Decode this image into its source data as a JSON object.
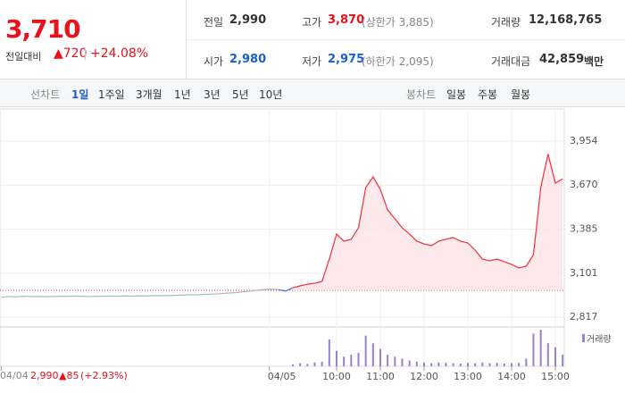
{
  "quote": {
    "price": "3,710",
    "change_label": "전일대비",
    "change": "▲720",
    "rate": "+24.08%"
  },
  "stats": [
    {
      "label": "전일",
      "value": "2,990"
    },
    {
      "label": "고가",
      "value": "3,870",
      "note": "(상한가 3,885)"
    },
    {
      "label": "거래량",
      "value": "12,168,765"
    },
    {
      "label": "시가",
      "value": "2,980"
    },
    {
      "label": "저가",
      "value": "2,975",
      "note": "(하한가 2,095)"
    },
    {
      "label": "거래대금",
      "value": "42,859",
      "unit": "백만"
    }
  ],
  "line_tabs": {
    "label": "선차트",
    "items": [
      "1일",
      "1주일",
      "3개월",
      "1년",
      "3년",
      "5년",
      "10년"
    ]
  },
  "candle_tabs": {
    "label": "봉차트",
    "items": [
      "일봉",
      "주봉",
      "월봉"
    ]
  },
  "prev_day": {
    "close": "2,990",
    "change": "▲85",
    "rate": "(+2.93%)"
  },
  "chart_data": {
    "type": "line",
    "ylim": [
      2817,
      3954
    ],
    "yticks": [
      {
        "value": 3954,
        "label": "3,954"
      },
      {
        "value": 3670,
        "label": "3,670"
      },
      {
        "value": 3385,
        "label": "3,385"
      },
      {
        "value": 3101,
        "label": "3,101"
      },
      {
        "value": 2817,
        "label": "2,817"
      }
    ],
    "xlim": [
      0,
      77
    ],
    "xticks": [
      {
        "value": 0,
        "label": "04/04"
      },
      {
        "value": 38,
        "label": "04/05"
      },
      {
        "value": 46,
        "label": "10:00"
      },
      {
        "value": 52,
        "label": "11:00"
      },
      {
        "value": 58,
        "label": "12:00"
      },
      {
        "value": 64,
        "label": "13:00"
      },
      {
        "value": 70,
        "label": "14:00"
      },
      {
        "value": 76,
        "label": "15:00"
      }
    ],
    "reference_line": 2990,
    "series": [
      {
        "color": "#b4b4b4",
        "values": [
          2945,
          2950,
          2948,
          2952,
          2950,
          2951,
          2949,
          2950,
          2952,
          2951,
          2953,
          2952,
          2950,
          2951,
          2952,
          2953,
          2952,
          2954,
          2953,
          2955,
          2954,
          2956,
          2955,
          2957,
          2958,
          2960,
          2962,
          2961,
          2964,
          2966,
          2968,
          2972,
          2975,
          2980,
          2984,
          2990,
          2995,
          2998,
          2995,
          null,
          null,
          null,
          null,
          null,
          null,
          null,
          null,
          null,
          null,
          null,
          null,
          null,
          null,
          null,
          null,
          null,
          null,
          null,
          null,
          null,
          null,
          null,
          null,
          null,
          null,
          null,
          null,
          null,
          null,
          null,
          null,
          null,
          null,
          null,
          null,
          null,
          null,
          null
        ]
      },
      {
        "color": "#2f6fd0",
        "values": [
          null,
          null,
          null,
          null,
          null,
          null,
          null,
          null,
          null,
          null,
          null,
          null,
          null,
          null,
          null,
          null,
          null,
          null,
          null,
          null,
          null,
          null,
          null,
          null,
          null,
          null,
          null,
          null,
          null,
          null,
          null,
          null,
          null,
          null,
          null,
          null,
          null,
          null,
          2995,
          2985,
          3007,
          null,
          null,
          null,
          null,
          null,
          null,
          null,
          null,
          null,
          null,
          null,
          null,
          null,
          null,
          null,
          null,
          null,
          null,
          null,
          null,
          null,
          null,
          null,
          null,
          null,
          null,
          null,
          null,
          null,
          null,
          null,
          null,
          null,
          null,
          null,
          null,
          null
        ]
      },
      {
        "color": "#f0313b",
        "fill": "#fde4e6",
        "values": [
          null,
          null,
          null,
          null,
          null,
          null,
          null,
          null,
          null,
          null,
          null,
          null,
          null,
          null,
          null,
          null,
          null,
          null,
          null,
          null,
          null,
          null,
          null,
          null,
          null,
          null,
          null,
          null,
          null,
          null,
          null,
          null,
          null,
          null,
          null,
          null,
          null,
          null,
          null,
          null,
          3007,
          3019,
          3030,
          3036,
          3048,
          3192,
          3354,
          3308,
          3320,
          3394,
          3654,
          3723,
          3642,
          3510,
          3452,
          3394,
          3354,
          3308,
          3290,
          3279,
          3308,
          3320,
          3331,
          3308,
          3296,
          3250,
          3192,
          3181,
          3192,
          3175,
          3158,
          3135,
          3146,
          3221,
          3654,
          3870,
          3683,
          3710
        ]
      }
    ],
    "volume": {
      "name": "거래량",
      "color": "#9b7fcf",
      "axis": "y2",
      "y2lim": [
        0,
        100
      ],
      "values": [
        null,
        null,
        null,
        null,
        null,
        null,
        null,
        null,
        null,
        null,
        null,
        null,
        null,
        null,
        null,
        null,
        null,
        null,
        null,
        null,
        null,
        null,
        null,
        null,
        null,
        null,
        null,
        null,
        null,
        null,
        null,
        null,
        null,
        null,
        null,
        null,
        null,
        null,
        null,
        null,
        5,
        8,
        6,
        10,
        12,
        70,
        40,
        25,
        30,
        35,
        80,
        60,
        45,
        30,
        25,
        20,
        15,
        12,
        10,
        8,
        10,
        9,
        8,
        7,
        9,
        8,
        10,
        8,
        9,
        7,
        8,
        9,
        20,
        85,
        95,
        60,
        50,
        30
      ]
    }
  }
}
